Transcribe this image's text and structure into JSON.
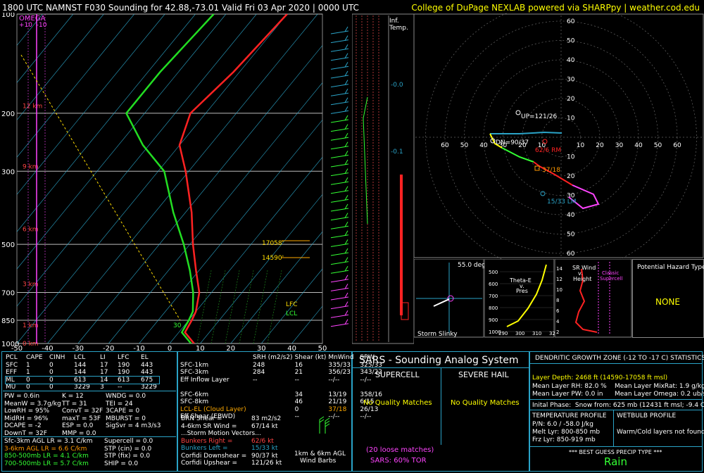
{
  "header": {
    "title": "1800 UTC NAMNST F030 Sounding for 42.88,-73.01 Valid  Fri 03 Apr 2020 | 0000 UTC",
    "credit": "College of DuPage NEXLAB powered via SHARPpy | weather.cod.edu"
  },
  "skewt": {
    "omega_label": "OMEGA",
    "omega_scale": "+10  -10",
    "pressure_ticks": [
      "100",
      "200",
      "300",
      "500",
      "700",
      "850",
      "1000"
    ],
    "temp_ticks": [
      "-50",
      "-40",
      "-30",
      "-20",
      "-10",
      "0",
      "10",
      "20",
      "30",
      "40",
      "50"
    ],
    "height_labels": [
      "12 km",
      "9 km",
      "6 km",
      "3 km",
      "1 km",
      "0 km"
    ],
    "lcl_label": "LCL",
    "lfc_label": "LFC",
    "dgz_top": "17058'",
    "dgz_bottom": "14590'",
    "sfc_temp_label": "30"
  },
  "chart_data": [
    {
      "type": "line",
      "title": "Skew-T sounding",
      "y_axis": "pressure (mb)",
      "x_axis": "temperature (C)",
      "ylim": [
        1000,
        100
      ],
      "xlim": [
        -50,
        50
      ],
      "series": [
        {
          "name": "Temperature",
          "pressure": [
            1000,
            925,
            850,
            800,
            700,
            600,
            500,
            400,
            300,
            250,
            200,
            150,
            100
          ],
          "values": [
            8,
            2,
            1,
            0,
            -4,
            -11,
            -19,
            -28,
            -41,
            -50,
            -55,
            -52,
            -50
          ]
        },
        {
          "name": "Dewpoint",
          "pressure": [
            1000,
            925,
            850,
            800,
            700,
            600,
            500,
            400,
            300,
            250,
            200,
            150,
            100
          ],
          "values": [
            7,
            1,
            0,
            -1,
            -6,
            -13,
            -22,
            -34,
            -48,
            -62,
            -76,
            -76,
            -74
          ]
        }
      ]
    },
    {
      "type": "scatter",
      "title": "Hodograph",
      "ring_labels": [
        "10",
        "20",
        "30",
        "40",
        "50",
        "60",
        "70"
      ],
      "points": [
        {
          "label": "UP=121/26"
        },
        {
          "label": "DN=90/37"
        },
        {
          "label": "62/6 RM"
        },
        {
          "label": "37/18"
        },
        {
          "label": "15/33 LM"
        }
      ]
    }
  ],
  "inflow": {
    "title": "Inf.",
    "subtitle": "Temp.",
    "values": [
      "-0.0",
      "-0.1"
    ]
  },
  "theta_panel": {
    "title": "Theta-E",
    "sub1": "v.",
    "sub2": "Pres",
    "y_ticks": [
      "500",
      "600",
      "700",
      "800",
      "900",
      "1000"
    ],
    "x_ticks": [
      "290",
      "300",
      "310",
      "32"
    ]
  },
  "sr_panel": {
    "title": "SR Wind",
    "sub1": "v.",
    "sub2": "Height",
    "classic": "Classic",
    "supercell": "Supercell",
    "y_ticks": [
      "14",
      "12",
      "10",
      "8",
      "6",
      "4",
      "2"
    ]
  },
  "slinky": {
    "angle": "55.0 deg",
    "label": "Storm Slinky"
  },
  "hazard": {
    "title": "Potential Hazard Type",
    "value": "NONE"
  },
  "parcels": {
    "headers": [
      "PCL",
      "CAPE",
      "CINH",
      "LCL",
      "LI",
      "LFC",
      "EL"
    ],
    "rows": [
      [
        "SFC",
        "1",
        "0",
        "144",
        "17",
        "190",
        "443"
      ],
      [
        "EFF",
        "1",
        "0",
        "144",
        "17",
        "190",
        "443"
      ],
      [
        "ML",
        "0",
        "0",
        "613",
        "14",
        "613",
        "675"
      ],
      [
        "MU",
        "0",
        "0",
        "3229",
        "3",
        "--",
        "3229"
      ]
    ]
  },
  "indices": {
    "col1": [
      "PW = 0.6in",
      "MeanW = 3.7g/kg",
      "LowRH = 95%",
      "MidRH = 96%",
      "DCAPE = -2",
      "DownT = 32F"
    ],
    "col2": [
      "K = 12",
      "TT = 31",
      "ConvT = 32F",
      "maxT = 53F",
      "ESP = 0.0",
      "MMP = 0.0"
    ],
    "col3": [
      "WNDG = 0.0",
      "TEI = 24",
      "3CAPE = 0",
      "MBURST = 0",
      "",
      "SigSvr = 4 m3/s3"
    ]
  },
  "lapse": [
    "Sfc-3km AGL LR = 3.1 C/km",
    "3-6km AGL LR = 6.6 C/km",
    "850-500mb LR = 4.1 C/km",
    "700-500mb LR = 5.7 C/km"
  ],
  "supercell": [
    "Supercell = 0.0",
    "STP (cin) = 0.0",
    "STP (fix) = 0.0",
    "SHIP = 0.0"
  ],
  "kinematics": {
    "headers": [
      "SRH (m2/s2)",
      "Shear (kt)",
      "MnWind",
      "SRW"
    ],
    "rows": [
      [
        "SFC-1km",
        "248",
        "16",
        "335/33",
        "325/33"
      ],
      [
        "SFC-3km",
        "284",
        "21",
        "356/23",
        "343/22"
      ],
      [
        "Eff Inflow Layer",
        "--",
        "--",
        "--/--",
        "--/--"
      ],
      [
        "",
        "",
        "",
        "",
        ""
      ],
      [
        "SFC-6km",
        "",
        "34",
        "13/19",
        "358/16"
      ],
      [
        "SFC-8km",
        "",
        "46",
        "21/19",
        "6/15"
      ],
      [
        "LCL-EL (Cloud Layer)",
        "",
        "0",
        "37/18",
        "26/13"
      ],
      [
        "Eff Shear (EBWD)",
        "",
        "--",
        "--/--",
        "--/--"
      ]
    ],
    "brn_shear": "BRN Shear =",
    "brn_val": "83 m2/s2",
    "sr_wind_label": "4-6km SR Wind =",
    "sr_wind_val": "67/14 kt",
    "storm_motion": "...Storm Motion Vectors...",
    "bunkers_right": "Bunkers Right =",
    "bunkers_right_val": "62/6 kt",
    "bunkers_left": "Bunkers Left =",
    "bunkers_left_val": "15/33 kt",
    "corfidi_down": "Corfidi Downshear =",
    "corfidi_down_val": "90/37 kt",
    "corfidi_up": "Corfidi Upshear =",
    "corfidi_up_val": "121/26 kt",
    "barb_label1": "1km & 6km AGL",
    "barb_label2": "Wind Barbs"
  },
  "sars": {
    "title": "SARS - Sounding Analog System",
    "supercell": "SUPERCELL",
    "severe_hail": "SEVERE HAIL",
    "no_match_1": "No Quality Matches",
    "no_match_2": "No Quality Matches",
    "loose": "(20 loose matches)",
    "tor": "SARS: 60% TOR"
  },
  "dgz": {
    "title": "DENDRITIC GROWTH ZONE (-12 TO -17 C) STATISTICS",
    "depth": "Layer Depth: 2468 ft (14590-17058 ft msl)",
    "rh": "Mean Layer RH: 82.0 %",
    "mixrat": "Mean Layer MixRat: 1.9 g/kg",
    "pw": "Mean Layer PW: 0.0 in",
    "omega": "Mean Layer Omega: 0.2 ub/s",
    "initial": "Inital Phase:  Snow from: 625 mb (12431 ft msl; -9.4 C)",
    "temp_profile": "TEMPERATURE PROFILE",
    "pn": "P/N: 6.0 / -58.0 J/kg",
    "melt": "Melt Lyr: 800-850 mb",
    "frz": "Frz Lyr: 850-919 mb",
    "wetbulb": "WETBULB PROFILE",
    "warm_cold": "Warm/Cold layers not found.",
    "best_guess": "*** BEST GUESS PRECIP TYPE ***",
    "precip": "Rain"
  }
}
